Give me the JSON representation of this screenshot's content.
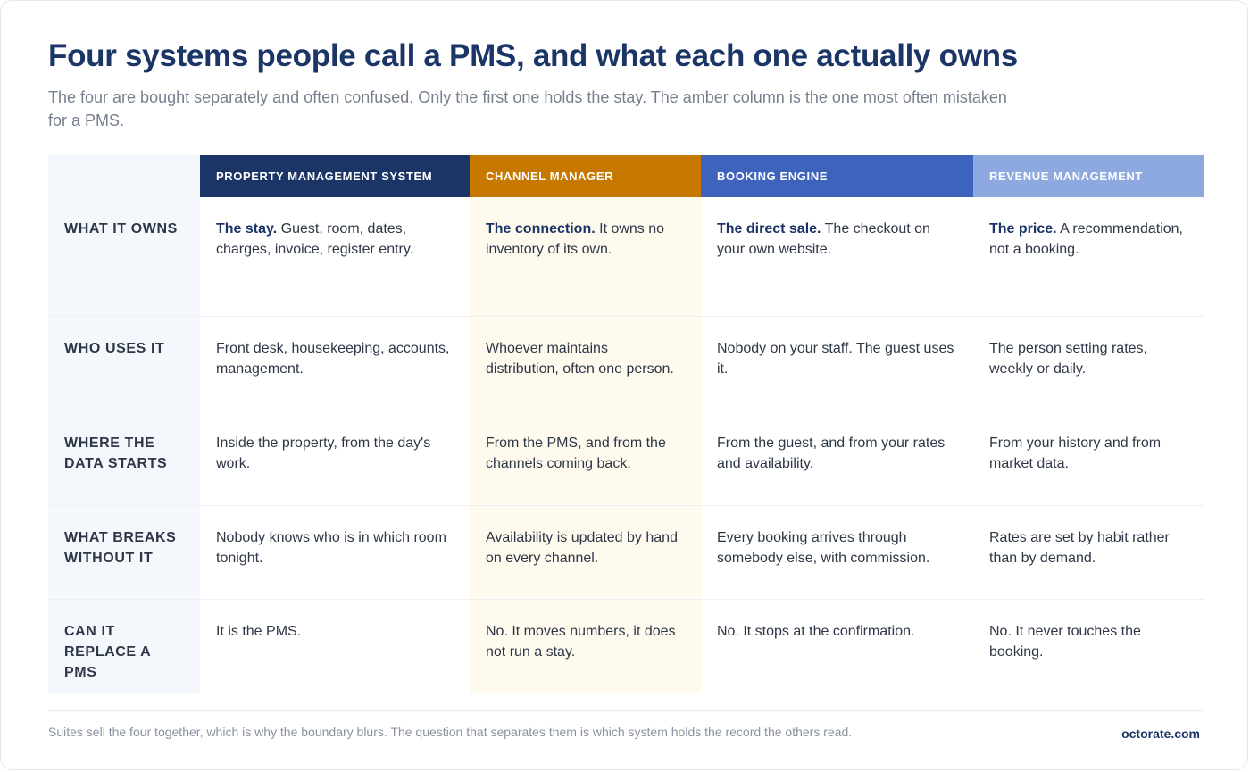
{
  "header": {
    "title": "Four systems people call a PMS, and what each one actually owns",
    "subtitle": "The four are bought separately and often confused. Only the first one holds the stay. The amber column is the one most often mistaken for a PMS."
  },
  "columns": [
    "PROPERTY MANAGEMENT SYSTEM",
    "CHANNEL MANAGER",
    "BOOKING ENGINE",
    "REVENUE MANAGEMENT"
  ],
  "column_colors": [
    "#1b3567",
    "#c77800",
    "#3d63bc",
    "#8ea8e0"
  ],
  "rows": [
    {
      "label": "WHAT IT OWNS",
      "cells": [
        {
          "lead": "The stay.",
          "text": " Guest, room, dates, charges, invoice, register entry."
        },
        {
          "lead": "The connection.",
          "text": " It owns no inventory of its own."
        },
        {
          "lead": "The direct sale.",
          "text": " The checkout on your own website."
        },
        {
          "lead": "The price.",
          "text": " A recommendation, not a booking."
        }
      ]
    },
    {
      "label": "WHO USES IT",
      "cells": [
        {
          "text": "Front desk, housekeeping, accounts, management."
        },
        {
          "text": "Whoever maintains distribution, often one person."
        },
        {
          "text": "Nobody on your staff. The guest uses it."
        },
        {
          "text": "The person setting rates, weekly or daily."
        }
      ]
    },
    {
      "label": "WHERE THE DATA STARTS",
      "cells": [
        {
          "text": "Inside the property, from the day's work."
        },
        {
          "text": "From the PMS, and from the channels coming back."
        },
        {
          "text": "From the guest, and from your rates and availability."
        },
        {
          "text": "From your history and from market data."
        }
      ]
    },
    {
      "label": "WHAT BREAKS WITHOUT IT",
      "cells": [
        {
          "text": "Nobody knows who is in which room tonight."
        },
        {
          "text": "Availability is updated by hand on every channel."
        },
        {
          "text": "Every booking arrives through somebody else, with commission."
        },
        {
          "text": "Rates are set by habit rather than by demand."
        }
      ]
    },
    {
      "label": "CAN IT REPLACE A PMS",
      "cells": [
        {
          "text": "It is the PMS."
        },
        {
          "text": "No. It moves numbers, it does not run a stay."
        },
        {
          "text": "No. It stops at the confirmation."
        },
        {
          "text": "No. It never touches the booking."
        }
      ]
    }
  ],
  "footer": {
    "note": "Suites sell the four together, which is why the boundary blurs. The question that separates them is which system holds the record the others read.",
    "brand": "octorate.com"
  }
}
